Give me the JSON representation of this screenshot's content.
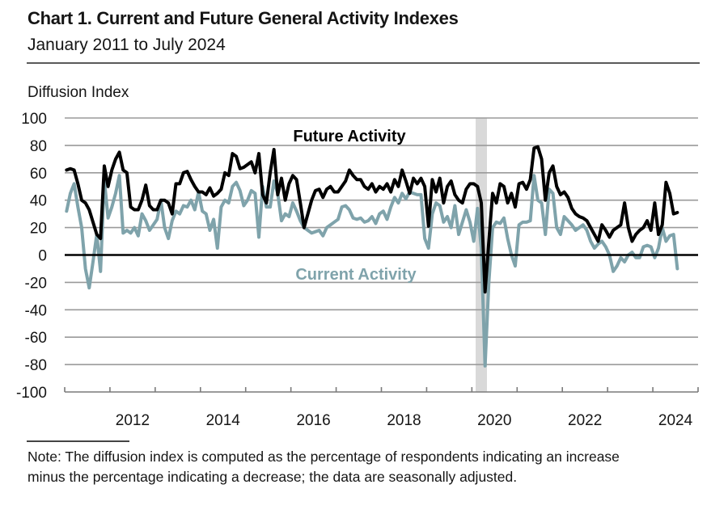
{
  "title": "Chart 1. Current and Future General Activity Indexes",
  "subtitle": "January 2011 to July 2024",
  "note": {
    "line1": "Note: The diffusion index is computed as the percentage of respondents indicating an increase",
    "line2": "minus the percentage indicating a decrease; the data are seasonally adjusted."
  },
  "chart_data": {
    "type": "line",
    "title": "Chart 1. Current and Future General Activity Indexes",
    "subtitle": "January 2011 to July 2024",
    "xlabel": "",
    "ylabel": "Diffusion Index",
    "ylim": [
      -100,
      100
    ],
    "yticks": [
      100,
      80,
      60,
      40,
      20,
      0,
      -20,
      -40,
      -60,
      -80,
      -100
    ],
    "xrange": [
      "2011-01",
      "2024-12"
    ],
    "start": "2011-01",
    "frequency": "monthly",
    "xtick_years": [
      2011,
      2012,
      2013,
      2014,
      2015,
      2016,
      2017,
      2018,
      2019,
      2020,
      2021,
      2022,
      2023,
      2024
    ],
    "xtick_labels": [
      "2012",
      "2014",
      "2016",
      "2018",
      "2020",
      "2022",
      "2024"
    ],
    "grid": true,
    "legend": "inline labels",
    "shaded_periods": [
      {
        "start": "2020-02",
        "end": "2020-04",
        "label": "recession",
        "color": "#d9d9d9"
      }
    ],
    "series": [
      {
        "name": "Future Activity",
        "color": "#000000",
        "label_position": "above, center",
        "values": [
          62,
          63,
          62,
          52,
          40,
          38,
          33,
          24,
          15,
          12,
          65,
          50,
          62,
          70,
          75,
          62,
          60,
          35,
          33,
          33,
          40,
          51,
          36,
          33,
          33,
          40,
          40,
          38,
          30,
          52,
          52,
          60,
          61,
          55,
          50,
          46,
          46,
          44,
          49,
          43,
          45,
          48,
          60,
          58,
          74,
          72,
          63,
          64,
          66,
          68,
          60,
          74,
          44,
          38,
          60,
          77,
          44,
          56,
          40,
          52,
          58,
          55,
          38,
          20,
          30,
          40,
          47,
          48,
          42,
          48,
          50,
          46,
          46,
          50,
          54,
          62,
          58,
          55,
          55,
          50,
          48,
          52,
          46,
          50,
          48,
          52,
          46,
          55,
          50,
          62,
          54,
          45,
          56,
          52,
          56,
          50,
          21,
          55,
          46,
          56,
          38,
          50,
          54,
          44,
          40,
          38,
          48,
          52,
          52,
          50,
          38,
          -27,
          10,
          45,
          38,
          52,
          50,
          38,
          45,
          35,
          52,
          53,
          48,
          55,
          78,
          79,
          70,
          40,
          60,
          65,
          50,
          44,
          46,
          42,
          34,
          30,
          28,
          27,
          25,
          20,
          15,
          10,
          22,
          18,
          13,
          18,
          20,
          22,
          38,
          20,
          10,
          15,
          18,
          20,
          25,
          18,
          38,
          15,
          22,
          53,
          45,
          30,
          31
        ]
      },
      {
        "name": "Current Activity",
        "color": "#7fa3ab",
        "label_position": "below zero line, center",
        "values": [
          32,
          45,
          52,
          35,
          20,
          -10,
          -24,
          -5,
          15,
          -12,
          55,
          27,
          35,
          45,
          58,
          16,
          18,
          16,
          20,
          14,
          30,
          25,
          18,
          22,
          26,
          40,
          20,
          12,
          25,
          32,
          30,
          36,
          35,
          40,
          33,
          46,
          32,
          30,
          18,
          26,
          5,
          35,
          40,
          38,
          50,
          53,
          47,
          36,
          40,
          47,
          45,
          13,
          50,
          35,
          35,
          54,
          45,
          25,
          30,
          28,
          38,
          32,
          25,
          20,
          18,
          16,
          17,
          18,
          14,
          20,
          22,
          24,
          26,
          35,
          36,
          33,
          27,
          26,
          27,
          24,
          25,
          28,
          23,
          30,
          32,
          26,
          35,
          42,
          38,
          45,
          41,
          46,
          45,
          44,
          44,
          12,
          5,
          30,
          38,
          36,
          24,
          28,
          20,
          36,
          15,
          24,
          33,
          24,
          10,
          34,
          5,
          -81,
          -20,
          20,
          24,
          23,
          27,
          12,
          0,
          -8,
          22,
          24,
          24,
          25,
          58,
          40,
          38,
          15,
          48,
          45,
          20,
          15,
          28,
          25,
          22,
          18,
          20,
          22,
          18,
          10,
          5,
          8,
          10,
          6,
          0,
          -12,
          -8,
          -2,
          -5,
          0,
          2,
          -2,
          -2,
          6,
          7,
          6,
          -2,
          5,
          20,
          10,
          14,
          15,
          -10
        ]
      }
    ]
  }
}
